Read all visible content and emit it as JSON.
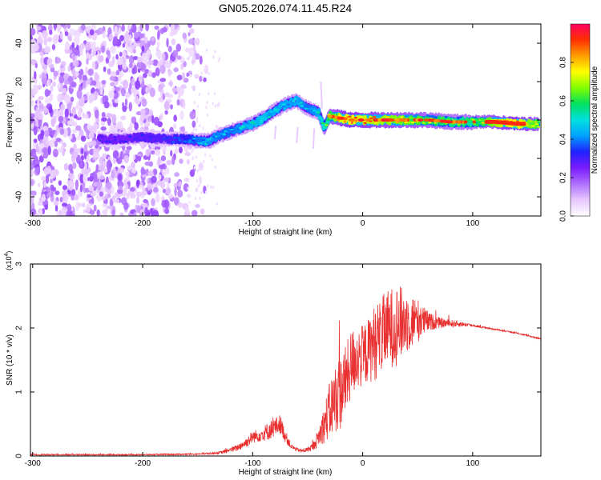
{
  "title": "GN05.2026.074.11.45.R24",
  "chart_data": [
    {
      "type": "heatmap",
      "name": "spectrogram",
      "xlabel": "Height of straight line (km)",
      "ylabel": "Frequency (Hz)",
      "xlim": [
        -302,
        162
      ],
      "ylim": [
        -50,
        50
      ],
      "xticks": [
        -300,
        -200,
        -100,
        0,
        100
      ],
      "xtick_labels": [
        "-300",
        "-200",
        "-100",
        "0",
        "100"
      ],
      "yticks": [
        -40,
        -20,
        0,
        20,
        40
      ],
      "ytick_labels": [
        "-40",
        "-20",
        "0",
        "20",
        "40"
      ],
      "colorbar": {
        "label": "Normalized spectral amplitude",
        "range": [
          0,
          1
        ],
        "ticks": [
          0.0,
          0.2,
          0.4,
          0.6,
          0.8
        ],
        "tick_labels": [
          "0.0",
          "0.2",
          "0.4",
          "0.6",
          "0.8"
        ],
        "colors": [
          "#ffffff",
          "#e8c8ff",
          "#b070ff",
          "#7a1cff",
          "#2020ff",
          "#00a0ff",
          "#00e0e0",
          "#00e060",
          "#80ff00",
          "#ffff00",
          "#ffa000",
          "#ff3000",
          "#ff0060"
        ]
      },
      "ridge": {
        "heights": [
          -240,
          -220,
          -200,
          -180,
          -160,
          -150,
          -140,
          -130,
          -120,
          -110,
          -100,
          -90,
          -80,
          -70,
          -60,
          -50,
          -40,
          -35,
          -30,
          -20,
          -10,
          0,
          20,
          40,
          60,
          80,
          100,
          120,
          140,
          160
        ],
        "frequencies": [
          -10,
          -10,
          -9,
          -10,
          -10,
          -11,
          -11,
          -8,
          -6,
          -4,
          -2,
          1,
          5,
          8,
          10,
          6,
          4,
          -4,
          2,
          1,
          0,
          0,
          0,
          0,
          0,
          -1,
          -1,
          -1,
          -2,
          -2
        ],
        "amplitudes": [
          0.3,
          0.3,
          0.32,
          0.34,
          0.38,
          0.45,
          0.5,
          0.45,
          0.45,
          0.48,
          0.52,
          0.55,
          0.5,
          0.5,
          0.5,
          0.45,
          0.5,
          0.6,
          0.7,
          0.85,
          0.9,
          0.85,
          0.8,
          0.75,
          0.7,
          0.65,
          0.65,
          0.8,
          0.9,
          0.7
        ]
      },
      "noise_region": [
        -302,
        -150
      ]
    },
    {
      "type": "line",
      "name": "snr",
      "xlabel": "Height of straight line (km)",
      "ylabel": "SNR (10 * v/v)",
      "multiplier": "(x10",
      "multiplier_exp": "4",
      "multiplier_close": ")",
      "xlim": [
        -302,
        162
      ],
      "ylim": [
        0,
        3
      ],
      "xticks": [
        -300,
        -200,
        -100,
        0,
        100
      ],
      "xtick_labels": [
        "-300",
        "-200",
        "-100",
        "0",
        "100"
      ],
      "yticks": [
        0,
        1,
        2,
        3
      ],
      "ytick_labels": [
        "0",
        "1",
        "2",
        "3"
      ],
      "color": "#e83030",
      "series": [
        {
          "name": "SNR",
          "x": [
            -302,
            -250,
            -200,
            -150,
            -130,
            -115,
            -105,
            -100,
            -95,
            -90,
            -85,
            -80,
            -75,
            -70,
            -65,
            -60,
            -55,
            -50,
            -45,
            -40,
            -35,
            -30,
            -25,
            -20,
            -15,
            -10,
            -5,
            0,
            5,
            10,
            20,
            30,
            40,
            50,
            60,
            70,
            80,
            90,
            100,
            110,
            120,
            130,
            140,
            150,
            162
          ],
          "baseline": [
            0.02,
            0.02,
            0.02,
            0.03,
            0.05,
            0.12,
            0.22,
            0.3,
            0.32,
            0.35,
            0.4,
            0.45,
            0.5,
            0.3,
            0.15,
            0.1,
            0.08,
            0.1,
            0.15,
            0.3,
            0.5,
            0.7,
            0.9,
            1.0,
            1.2,
            1.45,
            1.55,
            1.55,
            1.65,
            1.75,
            1.95,
            2.05,
            2.1,
            2.12,
            2.1,
            2.08,
            2.07,
            2.06,
            2.04,
            2.01,
            1.98,
            1.95,
            1.92,
            1.88,
            1.83
          ],
          "noise": [
            0.01,
            0.01,
            0.01,
            0.01,
            0.02,
            0.05,
            0.08,
            0.1,
            0.1,
            0.12,
            0.15,
            0.15,
            0.15,
            0.1,
            0.04,
            0.03,
            0.03,
            0.04,
            0.06,
            0.15,
            0.3,
            0.45,
            0.55,
            0.6,
            0.55,
            0.55,
            0.5,
            0.5,
            0.5,
            0.6,
            0.6,
            0.65,
            0.5,
            0.35,
            0.15,
            0.08,
            0.06,
            0.04,
            0.02,
            0.015,
            0.01,
            0.01,
            0.01,
            0.01,
            0.01
          ]
        }
      ]
    }
  ]
}
